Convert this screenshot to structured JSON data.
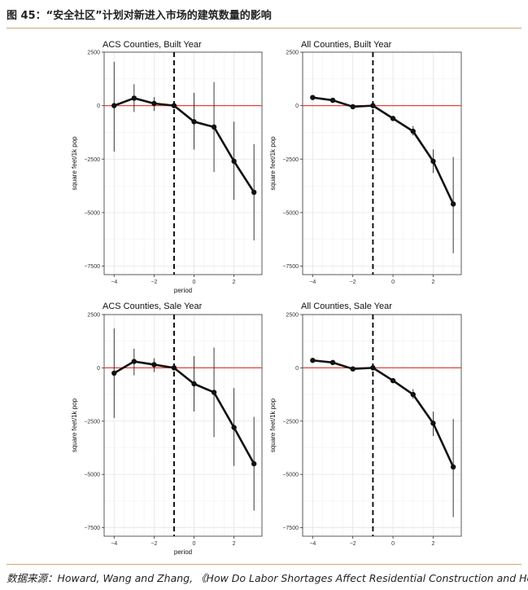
{
  "figure": {
    "title": "图 45：“安全社区”计划对新进入市场的建筑数量的影响",
    "source": "数据来源：Howard, Wang and Zhang, 《How Do Labor Shortages Affect Residential Construction and Housing"
  },
  "chart_data": [
    {
      "type": "line",
      "title": "ACS Counties, Built Year",
      "xlabel": "period",
      "ylabel": "square feet/1k pop",
      "xlim": [
        -4.5,
        3.4
      ],
      "ylim": [
        -7900,
        2500
      ],
      "xticks": [
        -4,
        -2,
        0,
        2
      ],
      "yticks": [
        2500,
        0,
        -2500,
        -5000,
        -7500
      ],
      "vline": -1,
      "hline": 0,
      "x": [
        -4,
        -3,
        -2,
        -1,
        0,
        1,
        2,
        3
      ],
      "y": [
        0,
        350,
        100,
        0,
        -750,
        -1000,
        -2600,
        -4050
      ],
      "lower": [
        -2150,
        -300,
        -250,
        0,
        -2050,
        -3100,
        -4400,
        -6300
      ],
      "upper": [
        2050,
        1000,
        400,
        0,
        600,
        1100,
        -750,
        -1800
      ]
    },
    {
      "type": "line",
      "title": "All Counties, Built Year",
      "xlabel": "",
      "ylabel": "square feet/1k pop",
      "xlim": [
        -4.5,
        3.4
      ],
      "ylim": [
        -7900,
        2500
      ],
      "xticks": [
        -4,
        -2,
        0,
        2
      ],
      "yticks": [
        2500,
        0,
        -2500,
        -5000,
        -7500
      ],
      "vline": -1,
      "hline": 0,
      "x": [
        -4,
        -3,
        -2,
        -1,
        0,
        1,
        2,
        3
      ],
      "y": [
        380,
        250,
        -50,
        0,
        -600,
        -1200,
        -2600,
        -4600
      ],
      "lower": [
        380,
        250,
        -50,
        0,
        -600,
        -1400,
        -3150,
        -6900
      ],
      "upper": [
        380,
        250,
        -50,
        0,
        -600,
        -950,
        -2050,
        -2400
      ]
    },
    {
      "type": "line",
      "title": "ACS Counties, Sale Year",
      "xlabel": "period",
      "ylabel": "square feet/1k pop",
      "xlim": [
        -4.5,
        3.4
      ],
      "ylim": [
        -7900,
        2500
      ],
      "xticks": [
        -4,
        -2,
        0,
        2
      ],
      "yticks": [
        2500,
        0,
        -2500,
        -5000,
        -7500
      ],
      "vline": -1,
      "hline": 0,
      "x": [
        -4,
        -3,
        -2,
        -1,
        0,
        1,
        2,
        3
      ],
      "y": [
        -250,
        300,
        150,
        0,
        -750,
        -1150,
        -2800,
        -4500
      ],
      "lower": [
        -2350,
        -350,
        -200,
        0,
        -2050,
        -3250,
        -4600,
        -6700
      ],
      "upper": [
        1850,
        900,
        450,
        0,
        550,
        950,
        -950,
        -2300
      ]
    },
    {
      "type": "line",
      "title": "All Counties, Sale Year",
      "xlabel": "",
      "ylabel": "square feet/1k pop",
      "xlim": [
        -4.5,
        3.4
      ],
      "ylim": [
        -7900,
        2500
      ],
      "xticks": [
        -4,
        -2,
        0,
        2
      ],
      "yticks": [
        2500,
        0,
        -2500,
        -5000,
        -7500
      ],
      "vline": -1,
      "hline": 0,
      "x": [
        -4,
        -3,
        -2,
        -1,
        0,
        1,
        2,
        3
      ],
      "y": [
        350,
        250,
        -50,
        0,
        -600,
        -1250,
        -2600,
        -4650
      ],
      "lower": [
        350,
        250,
        -50,
        0,
        -600,
        -1450,
        -3200,
        -7000
      ],
      "upper": [
        350,
        250,
        -50,
        0,
        -600,
        -1000,
        -2050,
        -2400
      ]
    }
  ]
}
